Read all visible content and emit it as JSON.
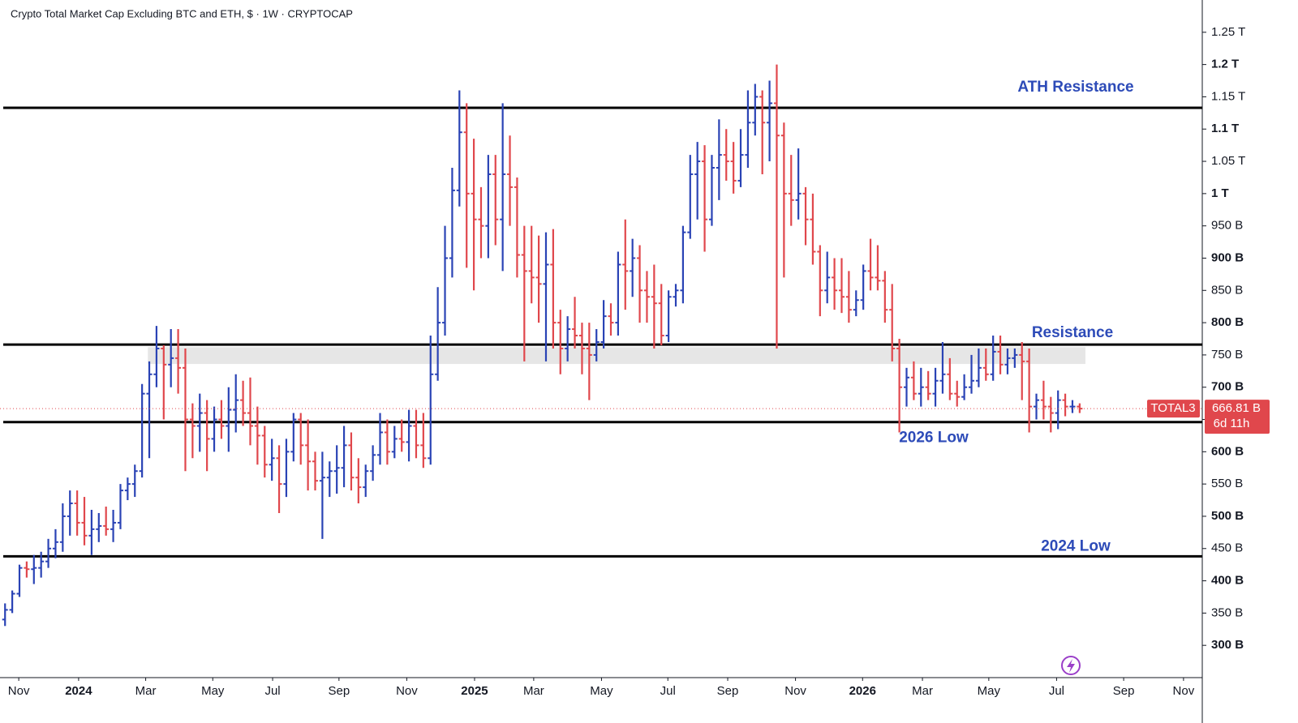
{
  "chart_data": {
    "type": "ohlc",
    "title": "Crypto Total Market Cap Excluding BTC and ETH, $ · 1W · CRYPTOCAP",
    "up_color": "#2a43b5",
    "down_color": "#e0474c",
    "bars": [
      [
        340,
        365,
        330,
        355
      ],
      [
        355,
        385,
        350,
        380
      ],
      [
        380,
        425,
        375,
        420
      ],
      [
        420,
        430,
        405,
        418
      ],
      [
        418,
        440,
        395,
        420
      ],
      [
        420,
        445,
        405,
        430
      ],
      [
        430,
        465,
        420,
        450
      ],
      [
        450,
        480,
        435,
        460
      ],
      [
        460,
        520,
        445,
        500
      ],
      [
        500,
        540,
        470,
        520
      ],
      [
        520,
        540,
        470,
        490
      ],
      [
        490,
        530,
        455,
        470
      ],
      [
        470,
        510,
        440,
        480
      ],
      [
        480,
        505,
        460,
        485
      ],
      [
        485,
        515,
        470,
        480
      ],
      [
        480,
        510,
        460,
        490
      ],
      [
        490,
        550,
        480,
        540
      ],
      [
        540,
        560,
        525,
        550
      ],
      [
        550,
        580,
        530,
        570
      ],
      [
        570,
        705,
        560,
        690
      ],
      [
        690,
        740,
        590,
        720
      ],
      [
        720,
        795,
        700,
        760
      ],
      [
        760,
        765,
        650,
        735
      ],
      [
        735,
        790,
        700,
        745
      ],
      [
        745,
        790,
        690,
        730
      ],
      [
        730,
        760,
        570,
        650
      ],
      [
        650,
        675,
        590,
        640
      ],
      [
        640,
        690,
        600,
        660
      ],
      [
        660,
        680,
        570,
        620
      ],
      [
        620,
        670,
        600,
        650
      ],
      [
        650,
        680,
        620,
        640
      ],
      [
        640,
        700,
        600,
        665
      ],
      [
        665,
        720,
        630,
        680
      ],
      [
        680,
        710,
        640,
        660
      ],
      [
        660,
        715,
        610,
        640
      ],
      [
        640,
        670,
        580,
        625
      ],
      [
        625,
        640,
        560,
        580
      ],
      [
        580,
        620,
        555,
        590
      ],
      [
        590,
        610,
        505,
        550
      ],
      [
        550,
        620,
        530,
        600
      ],
      [
        600,
        660,
        585,
        650
      ],
      [
        650,
        660,
        580,
        610
      ],
      [
        610,
        650,
        540,
        585
      ],
      [
        585,
        600,
        540,
        555
      ],
      [
        555,
        600,
        465,
        560
      ],
      [
        560,
        585,
        530,
        570
      ],
      [
        570,
        610,
        535,
        575
      ],
      [
        575,
        640,
        545,
        610
      ],
      [
        610,
        630,
        540,
        560
      ],
      [
        560,
        590,
        520,
        545
      ],
      [
        545,
        580,
        530,
        570
      ],
      [
        570,
        610,
        555,
        595
      ],
      [
        595,
        660,
        580,
        630
      ],
      [
        630,
        650,
        580,
        600
      ],
      [
        600,
        640,
        590,
        620
      ],
      [
        620,
        650,
        600,
        615
      ],
      [
        615,
        665,
        585,
        640
      ],
      [
        640,
        665,
        590,
        610
      ],
      [
        610,
        660,
        575,
        590
      ],
      [
        590,
        780,
        580,
        720
      ],
      [
        720,
        855,
        710,
        800
      ],
      [
        800,
        950,
        780,
        900
      ],
      [
        900,
        1040,
        870,
        1005
      ],
      [
        1005,
        1160,
        980,
        1095
      ],
      [
        1095,
        1140,
        885,
        1000
      ],
      [
        1000,
        1085,
        850,
        960
      ],
      [
        960,
        1010,
        900,
        950
      ],
      [
        950,
        1060,
        900,
        1030
      ],
      [
        1030,
        1060,
        920,
        960
      ],
      [
        960,
        1140,
        880,
        1030
      ],
      [
        1030,
        1090,
        950,
        1010
      ],
      [
        1010,
        1025,
        870,
        905
      ],
      [
        905,
        950,
        740,
        880
      ],
      [
        880,
        950,
        830,
        870
      ],
      [
        870,
        935,
        800,
        860
      ],
      [
        860,
        940,
        740,
        890
      ],
      [
        890,
        945,
        760,
        800
      ],
      [
        800,
        820,
        720,
        760
      ],
      [
        760,
        810,
        740,
        790
      ],
      [
        790,
        840,
        760,
        780
      ],
      [
        780,
        800,
        720,
        760
      ],
      [
        760,
        800,
        680,
        750
      ],
      [
        750,
        790,
        740,
        770
      ],
      [
        770,
        835,
        760,
        810
      ],
      [
        810,
        830,
        780,
        800
      ],
      [
        800,
        910,
        780,
        890
      ],
      [
        890,
        960,
        820,
        880
      ],
      [
        880,
        930,
        840,
        900
      ],
      [
        900,
        920,
        800,
        850
      ],
      [
        850,
        880,
        800,
        840
      ],
      [
        840,
        890,
        760,
        830
      ],
      [
        830,
        860,
        765,
        780
      ],
      [
        780,
        850,
        770,
        840
      ],
      [
        840,
        860,
        825,
        850
      ],
      [
        850,
        950,
        830,
        940
      ],
      [
        940,
        1060,
        930,
        1030
      ],
      [
        1030,
        1080,
        960,
        1050
      ],
      [
        1050,
        1075,
        910,
        960
      ],
      [
        960,
        1060,
        950,
        1040
      ],
      [
        1040,
        1115,
        990,
        1060
      ],
      [
        1060,
        1100,
        1020,
        1050
      ],
      [
        1050,
        1080,
        1000,
        1020
      ],
      [
        1020,
        1100,
        1010,
        1060
      ],
      [
        1060,
        1160,
        1040,
        1110
      ],
      [
        1110,
        1170,
        1090,
        1150
      ],
      [
        1150,
        1160,
        1030,
        1110
      ],
      [
        1110,
        1175,
        1050,
        1140
      ],
      [
        1140,
        1200,
        760,
        1090
      ],
      [
        1090,
        1110,
        870,
        1000
      ],
      [
        1000,
        1060,
        950,
        990
      ],
      [
        990,
        1070,
        960,
        1000
      ],
      [
        1000,
        1010,
        920,
        960
      ],
      [
        960,
        1000,
        890,
        910
      ],
      [
        910,
        920,
        810,
        850
      ],
      [
        850,
        910,
        830,
        870
      ],
      [
        870,
        900,
        820,
        850
      ],
      [
        850,
        900,
        815,
        840
      ],
      [
        840,
        880,
        800,
        820
      ],
      [
        820,
        850,
        810,
        835
      ],
      [
        835,
        890,
        820,
        880
      ],
      [
        880,
        930,
        850,
        870
      ],
      [
        870,
        920,
        850,
        865
      ],
      [
        865,
        880,
        800,
        820
      ],
      [
        820,
        860,
        740,
        760
      ],
      [
        760,
        775,
        630,
        700
      ],
      [
        700,
        730,
        670,
        715
      ],
      [
        715,
        740,
        680,
        690
      ],
      [
        690,
        730,
        670,
        700
      ],
      [
        700,
        725,
        680,
        690
      ],
      [
        690,
        730,
        670,
        710
      ],
      [
        710,
        770,
        690,
        720
      ],
      [
        720,
        745,
        680,
        690
      ],
      [
        690,
        710,
        670,
        685
      ],
      [
        685,
        720,
        680,
        700
      ],
      [
        700,
        750,
        690,
        710
      ],
      [
        710,
        760,
        700,
        730
      ],
      [
        730,
        760,
        710,
        720
      ],
      [
        720,
        780,
        710,
        755
      ],
      [
        755,
        780,
        720,
        735
      ],
      [
        735,
        760,
        720,
        745
      ],
      [
        745,
        760,
        730,
        750
      ],
      [
        750,
        770,
        680,
        740
      ],
      [
        740,
        760,
        630,
        670
      ],
      [
        670,
        690,
        650,
        680
      ],
      [
        680,
        710,
        650,
        670
      ],
      [
        670,
        685,
        630,
        660
      ],
      [
        660,
        695,
        635,
        680
      ],
      [
        680,
        690,
        655,
        670
      ],
      [
        670,
        680,
        660,
        670
      ],
      [
        670,
        675,
        660,
        666.81
      ]
    ],
    "xlim": [
      -0.7,
      166
    ],
    "xticks": [
      {
        "value": 1.9,
        "label": "Nov"
      },
      {
        "value": 10.2,
        "label": "2024"
      },
      {
        "value": 19.5,
        "label": "Mar"
      },
      {
        "value": 28.8,
        "label": "May"
      },
      {
        "value": 37.1,
        "label": "Jul"
      },
      {
        "value": 46.3,
        "label": "Sep"
      },
      {
        "value": 55.7,
        "label": "Nov"
      },
      {
        "value": 65.1,
        "label": "2025"
      },
      {
        "value": 73.3,
        "label": "Mar"
      },
      {
        "value": 82.7,
        "label": "May"
      },
      {
        "value": 91.9,
        "label": "Jul"
      },
      {
        "value": 100.2,
        "label": "Sep"
      },
      {
        "value": 109.6,
        "label": "Nov"
      },
      {
        "value": 118.9,
        "label": "2026"
      },
      {
        "value": 127.2,
        "label": "Mar"
      },
      {
        "value": 136.4,
        "label": "May"
      },
      {
        "value": 145.8,
        "label": "Jul"
      },
      {
        "value": 155.1,
        "label": "Sep"
      },
      {
        "value": 163.4,
        "label": "Nov"
      }
    ],
    "ylim": [
      250,
      1300
    ],
    "yticks": [
      {
        "value": 300,
        "label": "300 B"
      },
      {
        "value": 350,
        "label": "350 B"
      },
      {
        "value": 400,
        "label": "400 B"
      },
      {
        "value": 450,
        "label": "450 B"
      },
      {
        "value": 500,
        "label": "500 B"
      },
      {
        "value": 550,
        "label": "550 B"
      },
      {
        "value": 600,
        "label": "600 B"
      },
      {
        "value": 650,
        "label": "650 B"
      },
      {
        "value": 700,
        "label": "700 B"
      },
      {
        "value": 750,
        "label": "750 B"
      },
      {
        "value": 800,
        "label": "800 B"
      },
      {
        "value": 850,
        "label": "850 B"
      },
      {
        "value": 900,
        "label": "900 B"
      },
      {
        "value": 950,
        "label": "950 B"
      },
      {
        "value": 1000,
        "label": "1 T"
      },
      {
        "value": 1050,
        "label": "1.05 T"
      },
      {
        "value": 1100,
        "label": "1.1 T"
      },
      {
        "value": 1150,
        "label": "1.15 T"
      },
      {
        "value": 1200,
        "label": "1.2 T"
      },
      {
        "value": 1250,
        "label": "1.25 T"
      }
    ],
    "levels": [
      {
        "name": "ATH Resistance",
        "value": 1133
      },
      {
        "name": "Resistance",
        "value": 766
      },
      {
        "name": "2026 Low",
        "value": 646
      },
      {
        "name": "2024 Low",
        "value": 438
      }
    ],
    "zone": {
      "from": 736,
      "to": 762,
      "start": 19.8,
      "end": 149.8
    },
    "last_price": {
      "symbol": "TOTAL3",
      "value": 666.81,
      "label": "666.81 B",
      "countdown": "6d 11h"
    }
  }
}
